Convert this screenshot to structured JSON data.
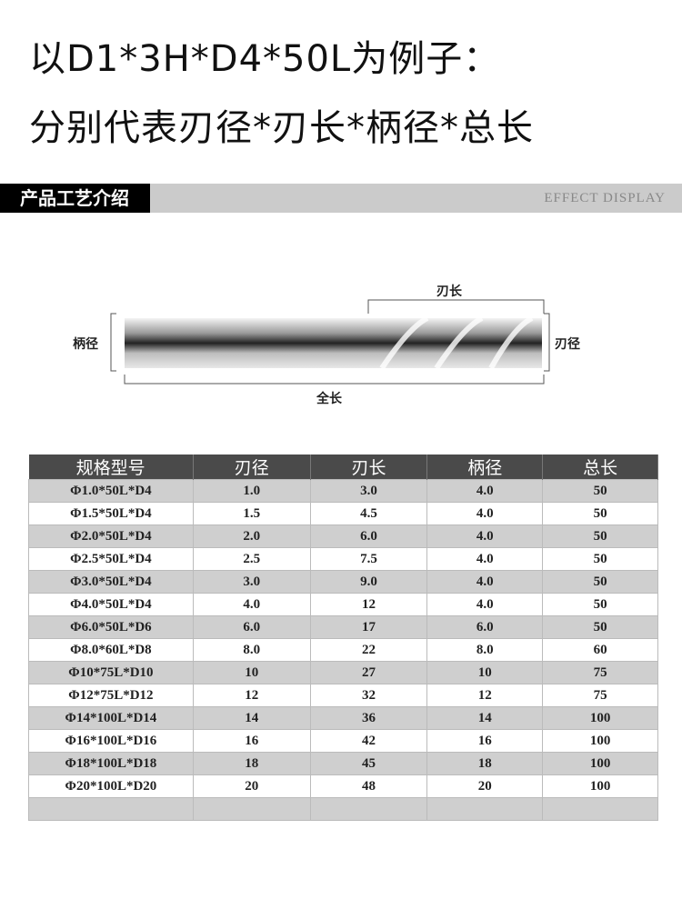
{
  "heading": {
    "line1": "以D1*3H*D4*50L为例子：",
    "line2": "分别代表刃径*刃长*柄径*总长"
  },
  "section_bar": {
    "title": "产品工艺介绍",
    "subtitle": "EFFECT DISPLAY"
  },
  "diagram": {
    "shank_dia": "柄径",
    "flute_len": "刃长",
    "cut_dia": "刃径",
    "total_len": "全长"
  },
  "table": {
    "headers": [
      "规格型号",
      "刃径",
      "刃长",
      "柄径",
      "总长"
    ],
    "rows": [
      [
        "Φ1.0*50L*D4",
        "1.0",
        "3.0",
        "4.0",
        "50"
      ],
      [
        "Φ1.5*50L*D4",
        "1.5",
        "4.5",
        "4.0",
        "50"
      ],
      [
        "Φ2.0*50L*D4",
        "2.0",
        "6.0",
        "4.0",
        "50"
      ],
      [
        "Φ2.5*50L*D4",
        "2.5",
        "7.5",
        "4.0",
        "50"
      ],
      [
        "Φ3.0*50L*D4",
        "3.0",
        "9.0",
        "4.0",
        "50"
      ],
      [
        "Φ4.0*50L*D4",
        "4.0",
        "12",
        "4.0",
        "50"
      ],
      [
        "Φ6.0*50L*D6",
        "6.0",
        "17",
        "6.0",
        "50"
      ],
      [
        "Φ8.0*60L*D8",
        "8.0",
        "22",
        "8.0",
        "60"
      ],
      [
        "Φ10*75L*D10",
        "10",
        "27",
        "10",
        "75"
      ],
      [
        "Φ12*75L*D12",
        "12",
        "32",
        "12",
        "75"
      ],
      [
        "Φ14*100L*D14",
        "14",
        "36",
        "14",
        "100"
      ],
      [
        "Φ16*100L*D16",
        "16",
        "42",
        "16",
        "100"
      ],
      [
        "Φ18*100L*D18",
        "18",
        "45",
        "18",
        "100"
      ],
      [
        "Φ20*100L*D20",
        "20",
        "48",
        "20",
        "100"
      ],
      [
        "",
        "",
        "",
        "",
        ""
      ]
    ]
  }
}
